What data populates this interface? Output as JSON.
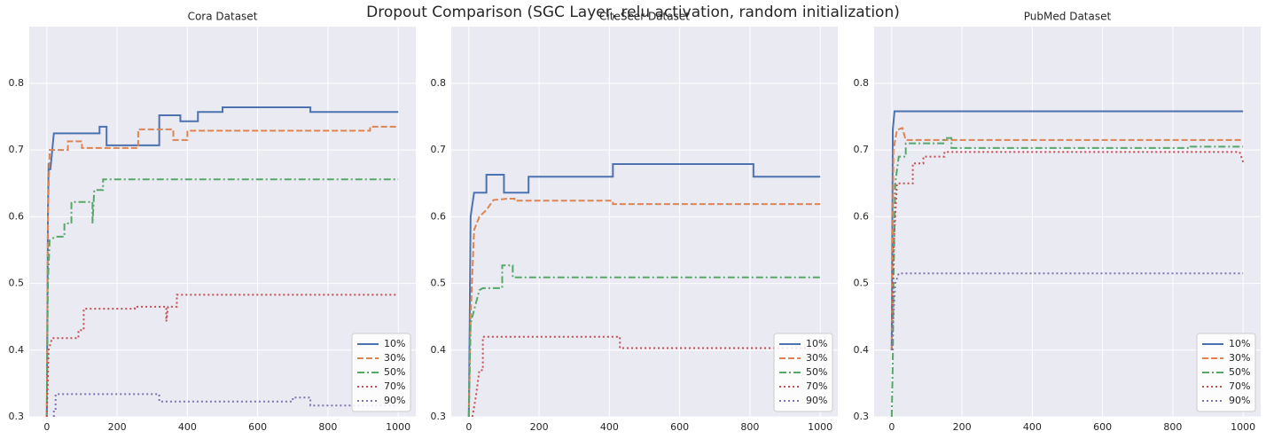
{
  "title": "Dropout Comparison  (SGC Layer, relu activation, random initialization)",
  "chart_data": [
    {
      "type": "line",
      "title": "Cora Dataset",
      "xlim": [
        -50,
        1050
      ],
      "ylim": [
        0.3,
        0.885
      ],
      "xticks": [
        0,
        200,
        400,
        600,
        800,
        1000
      ],
      "yticks": [
        0.3,
        0.4,
        0.5,
        0.6,
        0.7,
        0.8
      ],
      "grid": true,
      "legend": "lower right",
      "series": [
        {
          "name": "10%",
          "color": "#4c72b0",
          "linestyle": "solid",
          "x": [
            0,
            3,
            5,
            10,
            20,
            150,
            150,
            170,
            170,
            320,
            320,
            380,
            380,
            430,
            430,
            500,
            500,
            750,
            750,
            1000
          ],
          "values": [
            0.3,
            0.6,
            0.68,
            0.67,
            0.725,
            0.725,
            0.735,
            0.735,
            0.707,
            0.707,
            0.752,
            0.752,
            0.743,
            0.743,
            0.757,
            0.757,
            0.764,
            0.764,
            0.757,
            0.757
          ]
        },
        {
          "name": "30%",
          "color": "#dd8452",
          "linestyle": "dashed",
          "x": [
            0,
            3,
            8,
            60,
            60,
            100,
            100,
            260,
            260,
            360,
            360,
            400,
            400,
            920,
            920,
            1000
          ],
          "values": [
            0.3,
            0.6,
            0.7,
            0.7,
            0.713,
            0.713,
            0.703,
            0.703,
            0.731,
            0.731,
            0.715,
            0.715,
            0.729,
            0.729,
            0.735,
            0.735
          ]
        },
        {
          "name": "50%",
          "color": "#55a868",
          "linestyle": "dashdot",
          "x": [
            0,
            3,
            8,
            25,
            50,
            50,
            70,
            70,
            130,
            130,
            135,
            160,
            160,
            1000
          ],
          "values": [
            0.3,
            0.5,
            0.565,
            0.57,
            0.57,
            0.59,
            0.59,
            0.622,
            0.622,
            0.59,
            0.64,
            0.64,
            0.656,
            0.656
          ]
        },
        {
          "name": "70%",
          "color": "#c44e52",
          "linestyle": "dotted",
          "x": [
            0,
            5,
            15,
            90,
            90,
            105,
            105,
            250,
            250,
            340,
            340,
            345,
            370,
            370,
            1000
          ],
          "values": [
            0.3,
            0.4,
            0.418,
            0.418,
            0.43,
            0.43,
            0.462,
            0.462,
            0.465,
            0.465,
            0.443,
            0.465,
            0.465,
            0.483,
            0.483
          ]
        },
        {
          "name": "90%",
          "color": "#8172b3",
          "linestyle": "dotted",
          "x": [
            20,
            20,
            25,
            25,
            320,
            320,
            700,
            700,
            750,
            750,
            1000
          ],
          "values": [
            0.3,
            0.31,
            0.31,
            0.334,
            0.334,
            0.323,
            0.323,
            0.329,
            0.329,
            0.317,
            0.317
          ]
        }
      ]
    },
    {
      "type": "line",
      "title": "CiteSeer Dataset",
      "xlim": [
        -50,
        1050
      ],
      "ylim": [
        0.3,
        0.885
      ],
      "xticks": [
        0,
        200,
        400,
        600,
        800,
        1000
      ],
      "yticks": [
        0.3,
        0.4,
        0.5,
        0.6,
        0.7,
        0.8
      ],
      "grid": true,
      "legend": "lower right",
      "series": [
        {
          "name": "10%",
          "color": "#4c72b0",
          "linestyle": "solid",
          "x": [
            0,
            5,
            15,
            50,
            50,
            100,
            100,
            170,
            170,
            410,
            410,
            810,
            810,
            1000
          ],
          "values": [
            0.3,
            0.6,
            0.636,
            0.636,
            0.663,
            0.663,
            0.636,
            0.636,
            0.66,
            0.66,
            0.679,
            0.679,
            0.66,
            0.66
          ]
        },
        {
          "name": "30%",
          "color": "#dd8452",
          "linestyle": "dashed",
          "x": [
            0,
            5,
            15,
            30,
            50,
            70,
            110,
            130,
            130,
            410,
            410,
            1000
          ],
          "values": [
            0.3,
            0.45,
            0.58,
            0.6,
            0.61,
            0.625,
            0.627,
            0.627,
            0.624,
            0.624,
            0.619,
            0.619
          ]
        },
        {
          "name": "50%",
          "color": "#55a868",
          "linestyle": "dashdot",
          "x": [
            0,
            5,
            10,
            20,
            30,
            40,
            95,
            95,
            125,
            125,
            1000
          ],
          "values": [
            0.3,
            0.44,
            0.45,
            0.47,
            0.49,
            0.493,
            0.493,
            0.527,
            0.527,
            0.509,
            0.509
          ]
        },
        {
          "name": "70%",
          "color": "#c44e52",
          "linestyle": "dotted",
          "x": [
            10,
            20,
            30,
            40,
            40,
            430,
            430,
            1000
          ],
          "values": [
            0.3,
            0.33,
            0.37,
            0.37,
            0.42,
            0.42,
            0.403,
            0.403
          ]
        },
        {
          "name": "90%",
          "color": "#8172b3",
          "linestyle": "dotted",
          "x": [],
          "values": []
        }
      ]
    },
    {
      "type": "line",
      "title": "PubMed Dataset",
      "xlim": [
        -50,
        1050
      ],
      "ylim": [
        0.3,
        0.885
      ],
      "xticks": [
        0,
        200,
        400,
        600,
        800,
        1000
      ],
      "yticks": [
        0.3,
        0.4,
        0.5,
        0.6,
        0.7,
        0.8
      ],
      "grid": true,
      "legend": "lower right",
      "series": [
        {
          "name": "10%",
          "color": "#4c72b0",
          "linestyle": "solid",
          "x": [
            0,
            3,
            8,
            1000
          ],
          "values": [
            0.4,
            0.73,
            0.758,
            0.758
          ]
        },
        {
          "name": "30%",
          "color": "#dd8452",
          "linestyle": "dashed",
          "x": [
            0,
            5,
            15,
            30,
            40,
            1000
          ],
          "values": [
            0.4,
            0.7,
            0.73,
            0.733,
            0.715,
            0.715
          ]
        },
        {
          "name": "50%",
          "color": "#55a868",
          "linestyle": "dashdot",
          "x": [
            0,
            3,
            5,
            10,
            20,
            40,
            40,
            150,
            150,
            170,
            170,
            850,
            850,
            1000
          ],
          "values": [
            0.3,
            0.38,
            0.5,
            0.65,
            0.69,
            0.69,
            0.71,
            0.71,
            0.718,
            0.718,
            0.703,
            0.703,
            0.705,
            0.705
          ]
        },
        {
          "name": "70%",
          "color": "#c44e52",
          "linestyle": "dotted",
          "x": [
            0,
            5,
            15,
            60,
            60,
            90,
            90,
            150,
            150,
            990,
            1000
          ],
          "values": [
            0.4,
            0.55,
            0.65,
            0.65,
            0.68,
            0.68,
            0.69,
            0.69,
            0.697,
            0.697,
            0.682
          ]
        },
        {
          "name": "90%",
          "color": "#8172b3",
          "linestyle": "dotted",
          "x": [
            0,
            10,
            20,
            1000
          ],
          "values": [
            0.4,
            0.5,
            0.515,
            0.515
          ]
        }
      ]
    }
  ]
}
